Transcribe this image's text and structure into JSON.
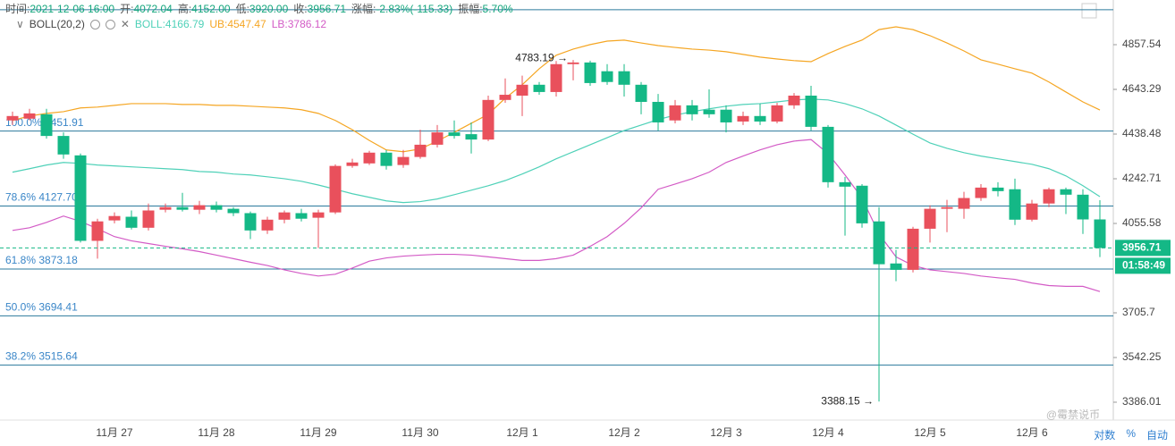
{
  "chart_data": {
    "type": "candlestick",
    "info": [
      [
        "时间:",
        "2021-12-06 16:00"
      ],
      [
        "开:",
        "4072.04"
      ],
      [
        "高:",
        "4152.00"
      ],
      [
        "低:",
        "3920.00"
      ],
      [
        "收:",
        "3956.71"
      ],
      [
        "涨幅:",
        "-2.83%(-115.33)"
      ],
      [
        "振幅:",
        "5.70%"
      ]
    ],
    "indicator": "BOLL(20,2)",
    "categories": [
      null,
      null,
      null,
      null,
      null,
      null,
      "11月 27",
      null,
      null,
      null,
      null,
      null,
      "11月 28",
      null,
      null,
      null,
      null,
      null,
      "11月 29",
      null,
      null,
      null,
      null,
      null,
      "11月 30",
      null,
      null,
      null,
      null,
      null,
      "12月 1",
      null,
      null,
      null,
      null,
      null,
      "12月 2",
      null,
      null,
      null,
      null,
      null,
      "12月 3",
      null,
      null,
      null,
      null,
      null,
      "12月 4",
      null,
      null,
      null,
      null,
      null,
      "12月 5",
      null,
      null,
      null,
      null,
      null,
      "12月 6",
      null,
      null,
      null,
      null
    ],
    "up_color": "#e9505c",
    "down_color": "#14b886",
    "ohlc": [
      [
        4500,
        4540,
        4479,
        4520
      ],
      [
        4508,
        4553,
        4500,
        4532
      ],
      [
        4528,
        4553,
        4418,
        4430
      ],
      [
        4430,
        4446,
        4329,
        4348
      ],
      [
        4344,
        4352,
        3978,
        3985
      ],
      [
        3985,
        4075,
        3914,
        4064
      ],
      [
        4068,
        4101,
        4056,
        4086
      ],
      [
        4083,
        4109,
        4031,
        4038
      ],
      [
        4038,
        4138,
        4027,
        4109
      ],
      [
        4112,
        4138,
        4101,
        4123
      ],
      [
        4123,
        4183,
        4105,
        4112
      ],
      [
        4112,
        4149,
        4094,
        4131
      ],
      [
        4131,
        4146,
        4101,
        4112
      ],
      [
        4116,
        4123,
        4086,
        4098
      ],
      [
        4098,
        4105,
        3992,
        4027
      ],
      [
        4027,
        4083,
        4013,
        4071
      ],
      [
        4071,
        4109,
        4056,
        4101
      ],
      [
        4098,
        4116,
        4064,
        4075
      ],
      [
        4079,
        4112,
        3956,
        4101
      ],
      [
        4101,
        4305,
        4094,
        4298
      ],
      [
        4298,
        4329,
        4290,
        4313
      ],
      [
        4309,
        4364,
        4302,
        4356
      ],
      [
        4356,
        4368,
        4282,
        4298
      ],
      [
        4302,
        4368,
        4290,
        4337
      ],
      [
        4337,
        4458,
        4329,
        4391
      ],
      [
        4391,
        4479,
        4379,
        4446
      ],
      [
        4446,
        4500,
        4418,
        4430
      ],
      [
        4438,
        4491,
        4352,
        4414
      ],
      [
        4414,
        4614,
        4407,
        4594
      ],
      [
        4594,
        4695,
        4581,
        4618
      ],
      [
        4614,
        4708,
        4520,
        4665
      ],
      [
        4665,
        4678,
        4618,
        4631
      ],
      [
        4631,
        4778,
        4610,
        4763
      ],
      [
        4763,
        4783.19,
        4686,
        4771
      ],
      [
        4771,
        4780,
        4660,
        4673
      ],
      [
        4729,
        4763,
        4665,
        4678
      ],
      [
        4729,
        4763,
        4610,
        4665
      ],
      [
        4665,
        4678,
        4528,
        4585
      ],
      [
        4585,
        4622,
        4454,
        4491
      ],
      [
        4500,
        4594,
        4487,
        4569
      ],
      [
        4569,
        4594,
        4500,
        4528
      ],
      [
        4549,
        4643,
        4512,
        4528
      ],
      [
        4549,
        4569,
        4446,
        4491
      ],
      [
        4495,
        4540,
        4479,
        4520
      ],
      [
        4520,
        4577,
        4479,
        4495
      ],
      [
        4495,
        4581,
        4487,
        4569
      ],
      [
        4569,
        4626,
        4553,
        4614
      ],
      [
        4614,
        4660,
        4454,
        4471
      ],
      [
        4471,
        4479,
        4205,
        4228
      ],
      [
        4228,
        4251,
        4006,
        4209
      ],
      [
        4213,
        4220,
        4038,
        4056
      ],
      [
        4064,
        4123,
        3388.15,
        3892
      ],
      [
        3895,
        3949,
        3826,
        3870
      ],
      [
        3870,
        4042,
        3860,
        4034
      ],
      [
        4034,
        4131,
        3978,
        4116
      ],
      [
        4116,
        4153,
        4020,
        4123
      ],
      [
        4116,
        4187,
        4075,
        4161
      ],
      [
        4161,
        4220,
        4149,
        4205
      ],
      [
        4205,
        4228,
        4168,
        4190
      ],
      [
        4198,
        4243,
        4049,
        4071
      ],
      [
        4071,
        4153,
        4064,
        4138
      ],
      [
        4138,
        4205,
        4123,
        4198
      ],
      [
        4198,
        4205,
        4094,
        4175
      ],
      [
        4175,
        4198,
        4013,
        4072.04
      ],
      [
        4072.04,
        4152,
        3920,
        3956.71
      ]
    ],
    "bands": [
      {
        "label": "BOLL:4166.79",
        "color": "#4fd1b8",
        "values": [
          4271,
          4286,
          4302,
          4313,
          4309,
          4302,
          4298,
          4294,
          4290,
          4286,
          4282,
          4274,
          4271,
          4263,
          4259,
          4251,
          4243,
          4232,
          4216,
          4198,
          4179,
          4164,
          4149,
          4142,
          4146,
          4157,
          4175,
          4194,
          4213,
          4235,
          4263,
          4294,
          4329,
          4360,
          4391,
          4422,
          4454,
          4479,
          4504,
          4524,
          4540,
          4553,
          4565,
          4573,
          4577,
          4585,
          4594,
          4598,
          4594,
          4577,
          4553,
          4520,
          4479,
          4438,
          4399,
          4375,
          4356,
          4341,
          4329,
          4317,
          4305,
          4286,
          4255,
          4213,
          4166.79
        ]
      },
      {
        "label": "UB:4547.47",
        "color": "#f5a623",
        "values": [
          4500,
          4520,
          4532,
          4540,
          4557,
          4561,
          4569,
          4577,
          4577,
          4577,
          4573,
          4573,
          4569,
          4569,
          4565,
          4561,
          4557,
          4549,
          4532,
          4500,
          4458,
          4410,
          4368,
          4360,
          4372,
          4407,
          4446,
          4487,
          4528,
          4602,
          4665,
          4741,
          4806,
          4836,
          4858,
          4875,
          4880,
          4866,
          4853,
          4844,
          4836,
          4831,
          4823,
          4810,
          4797,
          4788,
          4780,
          4775,
          4814,
          4849,
          4880,
          4932,
          4946,
          4932,
          4902,
          4866,
          4827,
          4784,
          4763,
          4741,
          4720,
          4678,
          4631,
          4585,
          4547.47
        ]
      },
      {
        "label": "LB:3786.12",
        "color": "#d35bc6",
        "values": [
          4027,
          4038,
          4060,
          4086,
          4064,
          4034,
          4002,
          3985,
          3974,
          3963,
          3953,
          3942,
          3928,
          3914,
          3900,
          3887,
          3870,
          3856,
          3846,
          3853,
          3877,
          3904,
          3917,
          3924,
          3928,
          3931,
          3931,
          3928,
          3921,
          3914,
          3907,
          3907,
          3914,
          3928,
          3963,
          4002,
          4056,
          4120,
          4198,
          4220,
          4243,
          4271,
          4313,
          4341,
          4368,
          4391,
          4407,
          4414,
          4352,
          4259,
          4161,
          4013,
          3921,
          3887,
          3870,
          3863,
          3856,
          3846,
          3839,
          3833,
          3819,
          3809,
          3806,
          3806,
          3786.12
        ]
      }
    ],
    "fib_levels": [
      {
        "value": 5032
      },
      {
        "value": 4451.91,
        "label": "100.0% 4451.91"
      },
      {
        "value": 4127.7,
        "label": "78.6% 4127.70"
      },
      {
        "value": 3873.18,
        "label": "61.8% 3873.18"
      },
      {
        "value": 3694.41,
        "label": "50.0% 3694.41"
      },
      {
        "value": 3515.64,
        "label": "38.2% 3515.64"
      }
    ],
    "annotations": [
      {
        "value": 4783.19,
        "label": "4783.19 →",
        "at": "high"
      },
      {
        "value": 3388.15,
        "label": "3388.15 →",
        "at": "low"
      }
    ],
    "last_price": {
      "value": 3956.71,
      "label": "3956.71"
    },
    "countdown": "01:58:49",
    "log": true,
    "ylim": [
      3325.5,
      5081.6
    ],
    "yticks": [
      4857.54,
      4643.29,
      4438.48,
      4242.71,
      4055.58,
      3705.7,
      3542.25,
      3386.01
    ],
    "controls": [
      "对数",
      "%",
      "自动"
    ],
    "watermark": "@霉禁说币"
  }
}
